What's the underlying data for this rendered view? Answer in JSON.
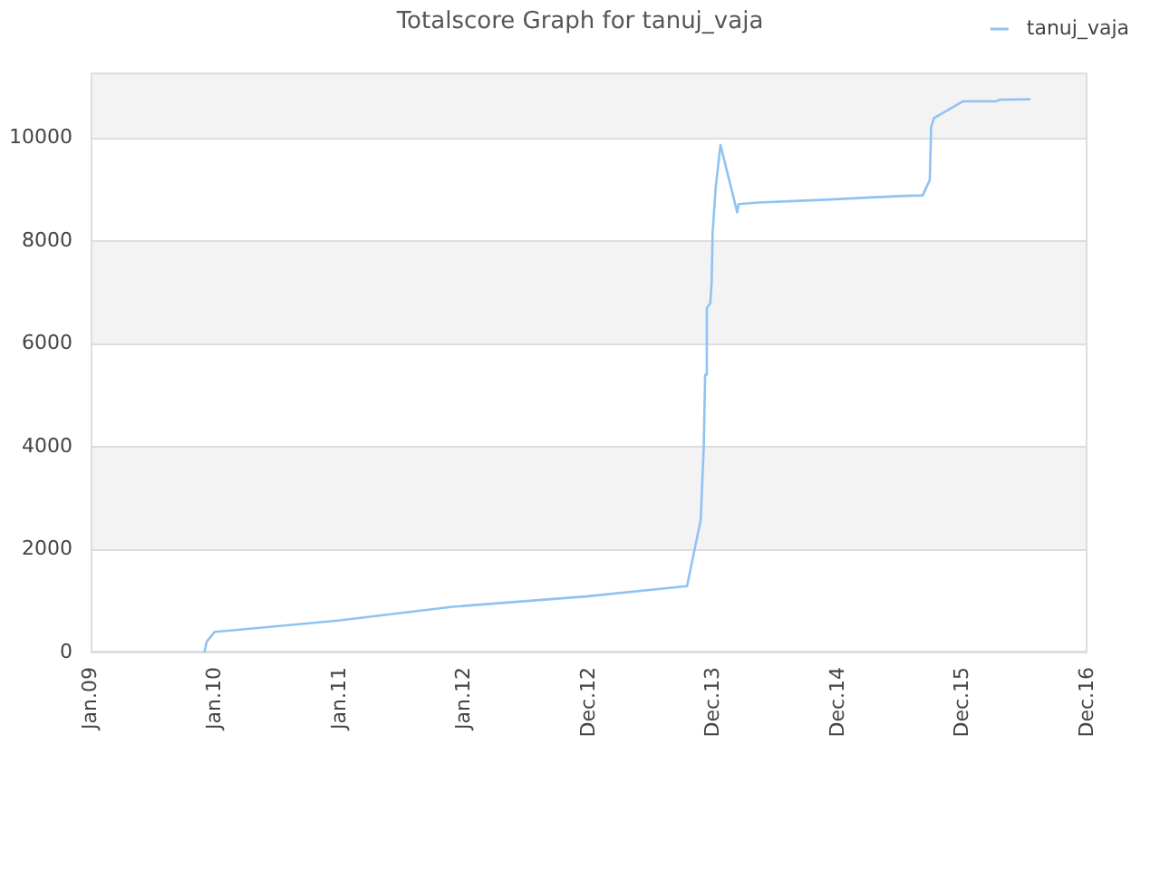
{
  "chart_data": {
    "type": "line",
    "title": "Totalscore Graph for tanuj_vaja",
    "x": [
      "2009-11-30",
      "2009-12-07",
      "2009-12-30",
      "2010-12-27",
      "2011-11-28",
      "2012-12-22",
      "2013-10-14",
      "2013-11-05",
      "2013-11-23",
      "2013-12-02",
      "2013-12-06",
      "2013-12-11",
      "2013-12-21",
      "2013-12-25",
      "2013-12-28",
      "2014-01-06",
      "2014-01-20",
      "2014-03-10",
      "2014-03-14",
      "2014-05-10",
      "2014-08-24",
      "2014-12-08",
      "2015-04-02",
      "2015-07-17",
      "2015-09-04",
      "2015-09-25",
      "2015-09-29",
      "2015-10-07",
      "2015-12-31",
      "2016-04-06",
      "2016-04-16",
      "2016-07-13"
    ],
    "series": [
      {
        "name": "tanuj_vaja",
        "color": "#8fc3f2",
        "values": [
          0,
          210,
          400,
          620,
          890,
          1090,
          1290,
          2000,
          2580,
          4000,
          5400,
          6700,
          6790,
          7170,
          8170,
          9050,
          9870,
          8560,
          8720,
          8750,
          8780,
          8810,
          8850,
          8880,
          8890,
          9190,
          10220,
          10390,
          10720,
          10720,
          10750,
          10760
        ]
      }
    ],
    "xlim": [
      "2009-01-01",
      "2016-12-30"
    ],
    "xticks": [
      {
        "value": "2009-01-01",
        "label": "Jan.09"
      },
      {
        "value": "2010-01-01",
        "label": "Jan.10"
      },
      {
        "value": "2011-01-01",
        "label": "Jan.11"
      },
      {
        "value": "2012-01-01",
        "label": "Jan.12"
      },
      {
        "value": "2012-12-31",
        "label": "Dec.12"
      },
      {
        "value": "2013-12-31",
        "label": "Dec.13"
      },
      {
        "value": "2014-12-31",
        "label": "Dec.14"
      },
      {
        "value": "2015-12-31",
        "label": "Dec.15"
      },
      {
        "value": "2016-12-30",
        "label": "Dec.16"
      }
    ],
    "ylim": [
      0,
      11280
    ],
    "yticks": [
      0,
      2000,
      4000,
      6000,
      8000,
      10000
    ],
    "grid": "y",
    "legend": "top right"
  }
}
